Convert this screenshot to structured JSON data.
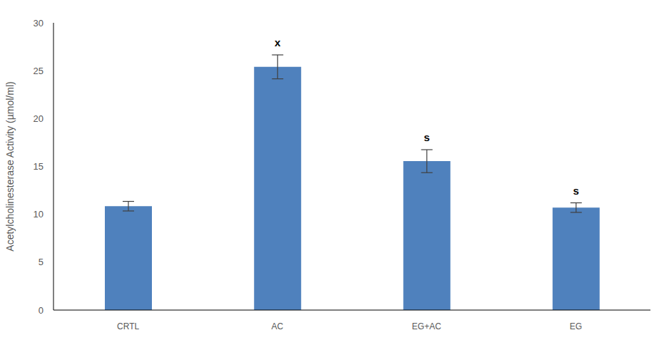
{
  "chart_data": {
    "type": "bar",
    "categories": [
      "CRTL",
      "AC",
      "EG+AC",
      "EG"
    ],
    "values": [
      10.85,
      25.4,
      15.55,
      10.7
    ],
    "errors": [
      0.5,
      1.25,
      1.2,
      0.5
    ],
    "annotations": [
      null,
      "x",
      "s",
      "s"
    ],
    "y_label": "Acetylcholinesterase Activity (µmol/ml)",
    "color": "#4f81bd",
    "ylim": [
      0,
      30
    ],
    "yticks": [
      0,
      5,
      10,
      15,
      20,
      25,
      30
    ],
    "grid": false
  }
}
